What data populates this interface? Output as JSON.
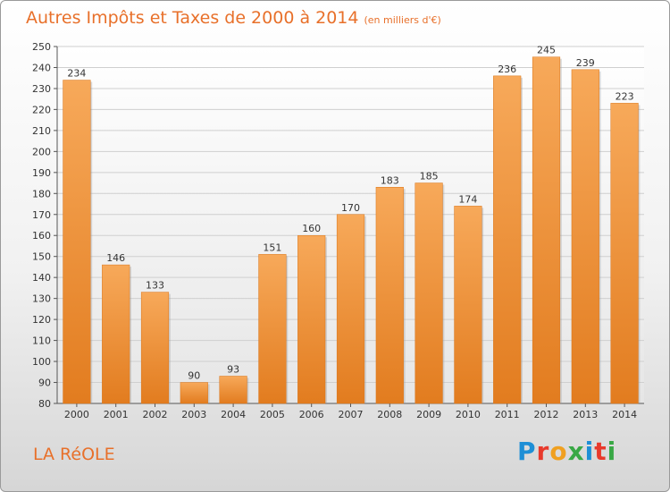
{
  "title": "Autres Impôts et Taxes de 2000 à 2014",
  "unit": "(en milliers d'€)",
  "place_name": "LA RéOLE",
  "logo_text": "Proxiti",
  "colors": {
    "bar_light": "#f7a95a",
    "bar_dark": "#e27c1f",
    "title": "#e8702a",
    "grid": "#cfcfcf"
  },
  "chart_data": {
    "type": "bar",
    "categories": [
      "2000",
      "2001",
      "2002",
      "2003",
      "2004",
      "2005",
      "2006",
      "2007",
      "2008",
      "2009",
      "2010",
      "2011",
      "2012",
      "2013",
      "2014"
    ],
    "values": [
      234,
      146,
      133,
      90,
      93,
      151,
      160,
      170,
      183,
      185,
      174,
      236,
      245,
      239,
      223
    ],
    "title": "Autres Impôts et Taxes de 2000 à 2014",
    "xlabel": "",
    "ylabel": "",
    "ylim": [
      80,
      250
    ],
    "yticks": [
      80,
      90,
      100,
      110,
      120,
      130,
      140,
      150,
      160,
      170,
      180,
      190,
      200,
      210,
      220,
      230,
      240,
      250
    ],
    "grid": true,
    "data_labels": true
  }
}
